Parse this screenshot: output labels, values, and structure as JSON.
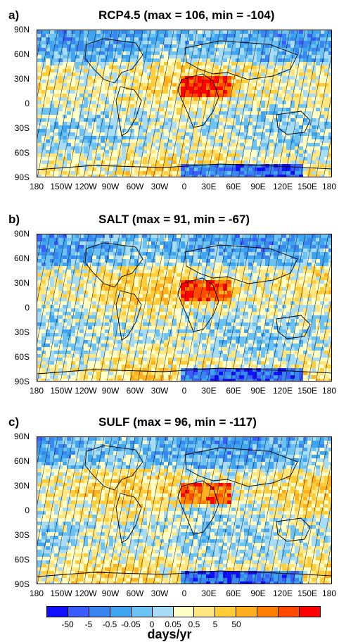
{
  "panels": [
    {
      "label": "a)",
      "title": "RCP4.5 (max = 106, min = -104)"
    },
    {
      "label": "b)",
      "title": "SALT (max = 91, min = -67)"
    },
    {
      "label": "c)",
      "title": "SULF (max = 96, min = -117)"
    }
  ],
  "lat_ticks": [
    "90N",
    "60N",
    "30N",
    "0",
    "30S",
    "60S",
    "90S"
  ],
  "lon_ticks": [
    "180",
    "150W",
    "120W",
    "90W",
    "60W",
    "30W",
    "0",
    "30E",
    "60E",
    "90E",
    "120E",
    "150E",
    "180"
  ],
  "colorbar": {
    "units": "days/yr",
    "labels": [
      "-50",
      "-5",
      "-0.5",
      "-0.05",
      "0",
      "0.05",
      "0.5",
      "5",
      "50"
    ],
    "colors": [
      "#1010ff",
      "#3a5cff",
      "#3a86f0",
      "#3fa5f0",
      "#6cc2f2",
      "#a8dcf5",
      "#ffffc8",
      "#ffe680",
      "#ffcd3a",
      "#ffb020",
      "#ff8000",
      "#ff4a00",
      "#ff0000"
    ]
  }
}
